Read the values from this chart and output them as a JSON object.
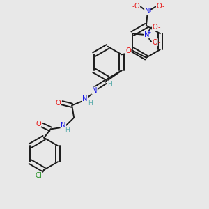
{
  "bg_color": "#e8e8e8",
  "bond_color": "#1a1a1a",
  "bond_width": 1.4,
  "atom_colors": {
    "C": "#1a1a1a",
    "H": "#5aabab",
    "N": "#1414e6",
    "O": "#e61414",
    "Cl": "#1a8c1a"
  },
  "font_size": 7.2,
  "figsize": [
    3.0,
    3.0
  ],
  "dpi": 100,
  "xlim": [
    0,
    10
  ],
  "ylim": [
    0,
    10
  ]
}
